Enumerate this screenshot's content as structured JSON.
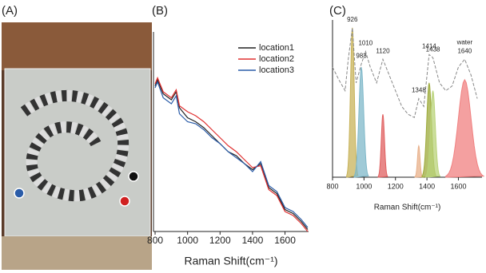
{
  "panel_labels": [
    "(A)",
    "(B)",
    "(C)"
  ],
  "chart_data": [
    {
      "type": "line",
      "xlabel": "Raman Shift(cm⁻¹)",
      "xlim": [
        790,
        1745
      ],
      "xticks": [
        800,
        1000,
        1200,
        1400,
        1600
      ],
      "ylim": [
        0,
        100
      ],
      "legend": "upper-right",
      "x": [
        800,
        815,
        850,
        900,
        930,
        950,
        1000,
        1050,
        1100,
        1150,
        1200,
        1250,
        1300,
        1350,
        1400,
        1450,
        1500,
        1550,
        1600,
        1650,
        1700,
        1740
      ],
      "series": [
        {
          "name": "location1",
          "color": "#222222",
          "values": [
            73,
            76,
            69,
            66,
            70,
            62,
            57,
            55,
            52,
            48,
            44,
            40,
            38,
            34,
            31,
            34,
            22,
            19,
            11,
            9,
            5,
            1
          ]
        },
        {
          "name": "location2",
          "color": "#e03030",
          "values": [
            74,
            77,
            70,
            67,
            71,
            63,
            60,
            58,
            55,
            51,
            47,
            43,
            40,
            36,
            32,
            33,
            21,
            18,
            10,
            8,
            4,
            0
          ]
        },
        {
          "name": "location3",
          "color": "#2a5ca8",
          "values": [
            72,
            75,
            67,
            64,
            68,
            59,
            55,
            54,
            51,
            47,
            44,
            40,
            37,
            34,
            30,
            35,
            23,
            20,
            12,
            10,
            6,
            2
          ]
        }
      ]
    },
    {
      "type": "fit",
      "xlabel": "Raman Shift(cm⁻¹)",
      "xlim": [
        800,
        1750
      ],
      "xticks": [
        800,
        1000,
        1200,
        1400,
        1600
      ],
      "ylim": [
        0,
        100
      ],
      "x": [
        800,
        840,
        880,
        900,
        926,
        950,
        983,
        1010,
        1040,
        1080,
        1120,
        1160,
        1200,
        1240,
        1280,
        1320,
        1348,
        1380,
        1414,
        1438,
        1480,
        1520,
        1560,
        1600,
        1640,
        1680,
        1720
      ],
      "series": [
        {
          "color": "#888888",
          "values": [
            70,
            62,
            55,
            75,
            95,
            60,
            72,
            80,
            70,
            60,
            75,
            65,
            55,
            45,
            40,
            38,
            50,
            45,
            78,
            76,
            60,
            55,
            58,
            70,
            75,
            65,
            50
          ]
        }
      ],
      "fits": [
        {
          "center": 926,
          "height": 95,
          "width": 12,
          "color": "#c8b35a"
        },
        {
          "center": 983,
          "height": 70,
          "width": 15,
          "color": "#7fb8c9"
        },
        {
          "center": 1120,
          "height": 40,
          "width": 10,
          "color": "#e06060"
        },
        {
          "center": 1348,
          "height": 20,
          "width": 8,
          "color": "#e8b08a"
        },
        {
          "center": 1414,
          "height": 60,
          "width": 15,
          "color": "#9caa3a"
        },
        {
          "center": 1438,
          "height": 55,
          "width": 15,
          "color": "#b9d37a"
        },
        {
          "center": 1640,
          "height": 62,
          "width": 40,
          "color": "#f08080"
        }
      ],
      "peak_labels": [
        926,
        983,
        1010,
        1120,
        1348,
        1414,
        1438,
        1640
      ],
      "annotation": "water"
    }
  ]
}
